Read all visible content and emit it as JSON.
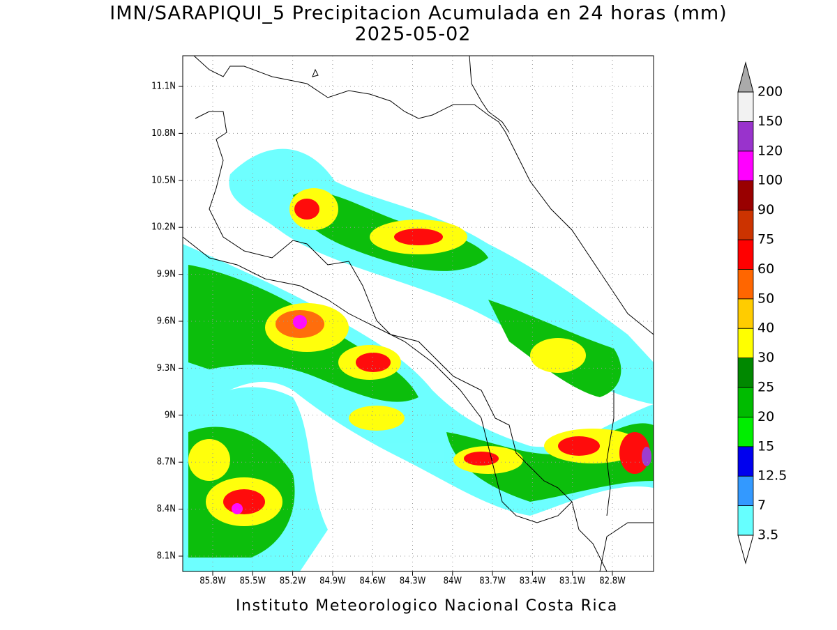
{
  "title": "IMN/SARAPIQUI_5 Precipitacion Acumulada en 24 horas (mm)",
  "subtitle": "2025-05-02",
  "map": {
    "x_ticks": [
      "85.8W",
      "85.5W",
      "85.2W",
      "84.9W",
      "84.6W",
      "84.3W",
      "84W",
      "83.7W",
      "83.4W",
      "83.1W",
      "82.8W"
    ],
    "y_ticks": [
      "11.1N",
      "10.8N",
      "10.5N",
      "10.2N",
      "9.9N",
      "9.6N",
      "9.3N",
      "9N",
      "8.7N",
      "8.4N",
      "8.1N"
    ]
  },
  "legend": {
    "levels": [
      3.5,
      7,
      12.5,
      15,
      20,
      25,
      30,
      40,
      50,
      60,
      75,
      90,
      100,
      120,
      150,
      200
    ],
    "colors": [
      "#66ffff",
      "#3399ff",
      "#0000ee",
      "#00ee00",
      "#00bb00",
      "#008800",
      "#ffff00",
      "#ffcc00",
      "#ff6600",
      "#ff0000",
      "#cc3300",
      "#990000",
      "#ff00ff",
      "#9933cc",
      "#f2f2f2"
    ],
    "below_color": "#ffffff",
    "above_color": "#aaaaaa"
  },
  "footer": "Instituto Meteorologico Nacional Costa Rica"
}
